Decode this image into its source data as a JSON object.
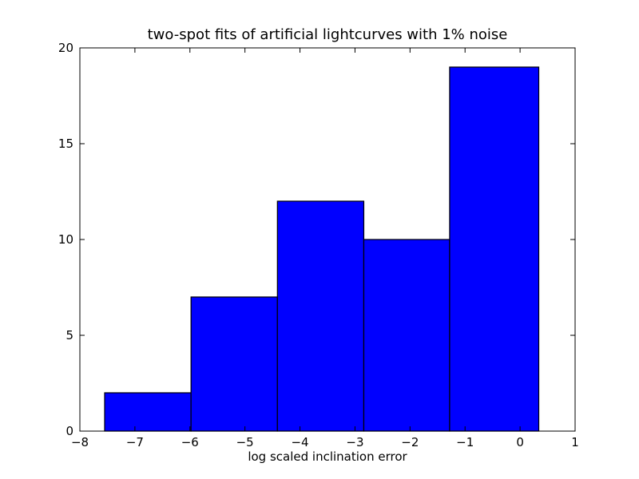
{
  "chart_data": {
    "type": "bar",
    "title": "two-spot fits of artificial lightcurves with 1% noise",
    "xlabel": "log scaled inclination error",
    "ylabel": "",
    "xlim": [
      -8,
      1
    ],
    "ylim": [
      0,
      20
    ],
    "xticks": [
      -8,
      -7,
      -6,
      -5,
      -4,
      -3,
      -2,
      -1,
      0,
      1
    ],
    "xtick_labels": [
      "−8",
      "−7",
      "−6",
      "−5",
      "−4",
      "−3",
      "−2",
      "−1",
      "0",
      "1"
    ],
    "yticks": [
      0,
      5,
      10,
      15,
      20
    ],
    "ytick_labels": [
      "0",
      "5",
      "10",
      "15",
      "20"
    ],
    "bins": [
      {
        "left": -7.55,
        "right": -5.98,
        "value": 2
      },
      {
        "left": -5.98,
        "right": -4.41,
        "value": 7
      },
      {
        "left": -4.41,
        "right": -2.84,
        "value": 12
      },
      {
        "left": -2.84,
        "right": -1.28,
        "value": 10
      },
      {
        "left": -1.28,
        "right": 0.34,
        "value": 19
      }
    ],
    "bar_color": "#0000ff",
    "grid": false
  }
}
